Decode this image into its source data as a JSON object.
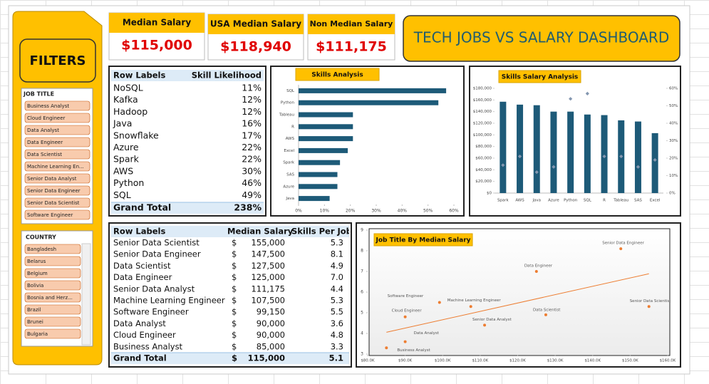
{
  "filters": {
    "title": "FILTERS",
    "job_title": {
      "title": "JOB TITLE",
      "items": [
        "Business Analyst",
        "Cloud Engineer",
        "Data Analyst",
        "Data Engineer",
        "Data Scientist",
        "Machine Learning En...",
        "Senior Data Analyst",
        "Senior Data Engineer",
        "Senior Data Scientist",
        "Software Engineer"
      ]
    },
    "country": {
      "title": "COUNTRY",
      "items": [
        "Bangladesh",
        "Belarus",
        "Belgium",
        "Bolivia",
        "Bosnia and Herz...",
        "Brazil",
        "Brunei",
        "Bulgaria"
      ]
    }
  },
  "cards": [
    {
      "label": "Median Salary",
      "value": "$115,000"
    },
    {
      "label": "USA Median Salary",
      "value": "$118,940"
    },
    {
      "label": "Non Median Salary",
      "value": "$111,175"
    }
  ],
  "dashboard_title": "TECH JOBS VS SALARY DASHBOARD",
  "skill_table": {
    "headers": [
      "Row Labels",
      "Skill Likelihood"
    ],
    "rows": [
      [
        "NoSQL",
        "11%"
      ],
      [
        "Kafka",
        "12%"
      ],
      [
        "Hadoop",
        "12%"
      ],
      [
        "Java",
        "16%"
      ],
      [
        "Snowflake",
        "17%"
      ],
      [
        "Azure",
        "22%"
      ],
      [
        "Spark",
        "22%"
      ],
      [
        "AWS",
        "30%"
      ],
      [
        "Python",
        "46%"
      ],
      [
        "SQL",
        "49%"
      ]
    ],
    "total": [
      "Grand Total",
      "238%"
    ]
  },
  "salary_table": {
    "headers": [
      "Row Labels",
      "Median Salary",
      "Skills Per Job"
    ],
    "rows": [
      [
        "Senior Data Scientist",
        "$",
        "155,000",
        "5.3"
      ],
      [
        "Senior Data Engineer",
        "$",
        "147,500",
        "8.1"
      ],
      [
        "Data Scientist",
        "$",
        "127,500",
        "4.9"
      ],
      [
        "Data Engineer",
        "$",
        "125,000",
        "7.0"
      ],
      [
        "Senior Data Analyst",
        "$",
        "111,175",
        "4.4"
      ],
      [
        "Machine Learning Engineer",
        "$",
        "107,500",
        "5.3"
      ],
      [
        "Software Engineer",
        "$",
        "99,150",
        "5.5"
      ],
      [
        "Data Analyst",
        "$",
        "90,000",
        "3.6"
      ],
      [
        "Cloud Engineer",
        "$",
        "90,000",
        "4.8"
      ],
      [
        "Business Analyst",
        "$",
        "85,000",
        "3.3"
      ]
    ],
    "total": [
      "Grand Total",
      "$",
      "115,000",
      "5.1"
    ]
  },
  "chart_data": [
    {
      "type": "hbar",
      "title": "Skills Analysis",
      "categories": [
        "SQL",
        "Python",
        "Tableau",
        "R",
        "AWS",
        "Excel",
        "Spark",
        "SAS",
        "Azure",
        "Java"
      ],
      "values": [
        57,
        54,
        21,
        21,
        21,
        19,
        16,
        15,
        15,
        12
      ],
      "color": "#1d5a78",
      "xlim": [
        0,
        60
      ],
      "xticks": [
        {
          "value": 0,
          "label": "0%"
        },
        {
          "value": 10,
          "label": "10%"
        },
        {
          "value": 20,
          "label": "20%"
        },
        {
          "value": 30,
          "label": "30%"
        },
        {
          "value": 40,
          "label": "40%"
        },
        {
          "value": 50,
          "label": "50%"
        },
        {
          "value": 60,
          "label": "60%"
        }
      ]
    },
    {
      "type": "combo",
      "title": "Skills Salary Analysis",
      "categories": [
        "Spark",
        "AWS",
        "Java",
        "Azure",
        "Python",
        "SQL",
        "R",
        "Tableau",
        "SAS",
        "Excel"
      ],
      "series": [
        {
          "type": "bar",
          "color": "#1d5a78",
          "values": [
            157000,
            152000,
            151000,
            140000,
            140000,
            135000,
            134000,
            125000,
            123000,
            103000
          ]
        },
        {
          "type": "scatter",
          "axis": "y2",
          "color": "#8497b0",
          "values": [
            16,
            21,
            12,
            15,
            54,
            57,
            21,
            21,
            15,
            19
          ]
        }
      ],
      "ylim": [
        0,
        180000
      ],
      "yticks": [
        {
          "value": 0,
          "label": "$0"
        },
        {
          "value": 20000,
          "label": "$20,000"
        },
        {
          "value": 40000,
          "label": "$40,000"
        },
        {
          "value": 60000,
          "label": "$60,000"
        },
        {
          "value": 80000,
          "label": "$80,000"
        },
        {
          "value": 100000,
          "label": "$100,000"
        },
        {
          "value": 120000,
          "label": "$120,000"
        },
        {
          "value": 140000,
          "label": "$140,000"
        },
        {
          "value": 160000,
          "label": "$160,000"
        },
        {
          "value": 180000,
          "label": "$180,000"
        }
      ],
      "y2lim": [
        0,
        60
      ],
      "y2ticks": [
        {
          "value": 0,
          "label": "0%"
        },
        {
          "value": 10,
          "label": "10%"
        },
        {
          "value": 20,
          "label": "20%"
        },
        {
          "value": 30,
          "label": "30%"
        },
        {
          "value": 40,
          "label": "40%"
        },
        {
          "value": 50,
          "label": "50%"
        },
        {
          "value": 60,
          "label": "60%"
        }
      ]
    },
    {
      "type": "scatter",
      "title": "Job Title By Median Salary",
      "labels": [
        "Business Analyst",
        "Data Analyst",
        "Cloud Engineer",
        "Software Engineer",
        "Machine Learning Engineer",
        "Senior Data Analyst",
        "Data Engineer",
        "Data Scientist",
        "Senior Data Engineer",
        "Senior Data Scientist"
      ],
      "x": [
        85000,
        90000,
        90000,
        99150,
        107500,
        111175,
        125000,
        127500,
        147500,
        155000
      ],
      "values": [
        3.3,
        3.6,
        4.8,
        5.5,
        5.3,
        4.4,
        7.0,
        4.9,
        8.1,
        5.3
      ],
      "color": "#ed7d31",
      "trendline": true,
      "trendline_color": "#ed7d31",
      "xlim": [
        80000,
        160000
      ],
      "xticks": [
        {
          "value": 80000,
          "label": "$80.0K"
        },
        {
          "value": 90000,
          "label": "$90.0K"
        },
        {
          "value": 100000,
          "label": "$100.0K"
        },
        {
          "value": 110000,
          "label": "$110.0K"
        },
        {
          "value": 120000,
          "label": "$120.0K"
        },
        {
          "value": 130000,
          "label": "$130.0K"
        },
        {
          "value": 140000,
          "label": "$140.0K"
        },
        {
          "value": 150000,
          "label": "$150.0K"
        },
        {
          "value": 160000,
          "label": "$160.0K"
        }
      ],
      "ylim": [
        3,
        9
      ],
      "yticks": [
        3,
        4,
        5,
        6,
        7,
        8,
        9
      ]
    }
  ]
}
